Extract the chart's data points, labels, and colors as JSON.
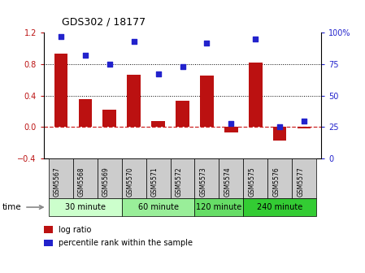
{
  "title": "GDS302 / 18177",
  "samples": [
    "GSM5567",
    "GSM5568",
    "GSM5569",
    "GSM5570",
    "GSM5571",
    "GSM5572",
    "GSM5573",
    "GSM5574",
    "GSM5575",
    "GSM5576",
    "GSM5577"
  ],
  "log_ratio": [
    0.93,
    0.35,
    0.22,
    0.67,
    0.07,
    0.33,
    0.65,
    -0.07,
    0.82,
    -0.17,
    -0.02
  ],
  "percentile": [
    97,
    82,
    75,
    93,
    67,
    73,
    92,
    28,
    95,
    25,
    30
  ],
  "bar_color": "#bb1111",
  "dot_color": "#2222cc",
  "ylim_left": [
    -0.4,
    1.2
  ],
  "ylim_right": [
    0,
    100
  ],
  "yticks_left": [
    -0.4,
    0.0,
    0.4,
    0.8,
    1.2
  ],
  "yticks_right": [
    0,
    25,
    50,
    75,
    100
  ],
  "yticklabels_right": [
    "0",
    "25",
    "50",
    "75",
    "100%"
  ],
  "groups": [
    {
      "label": "30 minute",
      "start": 0,
      "end": 2,
      "color": "#ccffcc"
    },
    {
      "label": "60 minute",
      "start": 3,
      "end": 5,
      "color": "#99ee99"
    },
    {
      "label": "120 minute",
      "start": 6,
      "end": 7,
      "color": "#66dd66"
    },
    {
      "label": "240 minute",
      "start": 8,
      "end": 10,
      "color": "#33cc33"
    }
  ],
  "time_label": "time",
  "legend_bar_label": "log ratio",
  "legend_dot_label": "percentile rank within the sample",
  "bg_color": "#ffffff",
  "tick_label_row_color": "#cccccc"
}
